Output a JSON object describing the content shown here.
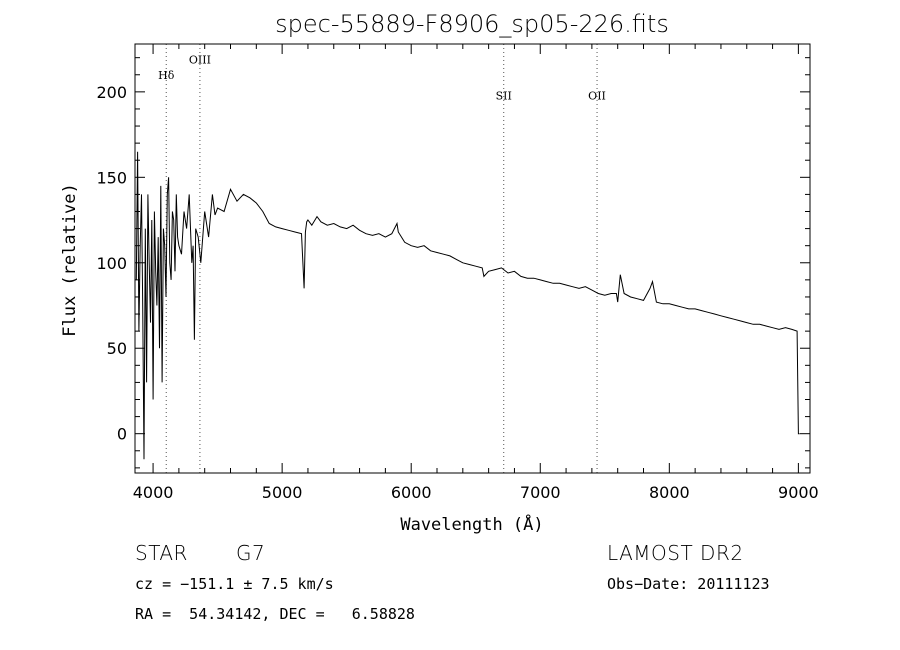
{
  "chart_data": {
    "type": "line",
    "title": "spec-55889-F8906_sp05-226.fits",
    "xlabel": "Wavelength (Å)",
    "ylabel": "Flux (relative)",
    "xlim": [
      3860,
      9090
    ],
    "ylim": [
      -23,
      228
    ],
    "x_ticks": [
      "4000",
      "5000",
      "6000",
      "7000",
      "8000",
      "9000"
    ],
    "x_tick_values": [
      4000,
      5000,
      6000,
      7000,
      8000,
      9000
    ],
    "y_ticks": [
      "0",
      "50",
      "100",
      "150",
      "200"
    ],
    "y_tick_values": [
      0,
      50,
      100,
      150,
      200
    ],
    "grid": false,
    "line_markers": [
      {
        "label": "Hδ",
        "wavelength": 4102,
        "label_flux": 210
      },
      {
        "label": "OIII",
        "wavelength": 4363,
        "label_flux": 219
      },
      {
        "label": "SII",
        "wavelength": 6717,
        "label_flux": 198
      },
      {
        "label": "OII",
        "wavelength": 7440,
        "label_flux": 198
      }
    ],
    "series": [
      {
        "x": [
          3870,
          3880,
          3890,
          3900,
          3910,
          3920,
          3930,
          3940,
          3950,
          3960,
          3970,
          3980,
          3990,
          4000,
          4010,
          4020,
          4030,
          4040,
          4050,
          4060,
          4070,
          4080,
          4090,
          4100,
          4110,
          4120,
          4130,
          4140,
          4150,
          4160,
          4170,
          4180,
          4190,
          4200,
          4220,
          4240,
          4260,
          4280,
          4300,
          4310,
          4320,
          4330,
          4350,
          4370,
          4400,
          4430,
          4460,
          4480,
          4500,
          4550,
          4600,
          4650,
          4700,
          4750,
          4800,
          4850,
          4900,
          4950,
          5000,
          5050,
          5100,
          5150,
          5170,
          5180,
          5190,
          5200,
          5230,
          5270,
          5300,
          5350,
          5400,
          5450,
          5500,
          5550,
          5600,
          5650,
          5700,
          5750,
          5800,
          5850,
          5890,
          5900,
          5950,
          6000,
          6050,
          6100,
          6150,
          6200,
          6250,
          6300,
          6350,
          6400,
          6450,
          6500,
          6550,
          6563,
          6600,
          6650,
          6700,
          6750,
          6800,
          6850,
          6900,
          6950,
          7000,
          7050,
          7100,
          7150,
          7200,
          7250,
          7300,
          7350,
          7400,
          7450,
          7500,
          7550,
          7590,
          7600,
          7620,
          7650,
          7700,
          7750,
          7800,
          7850,
          7870,
          7900,
          7950,
          8000,
          8050,
          8100,
          8150,
          8200,
          8250,
          8300,
          8350,
          8400,
          8450,
          8500,
          8550,
          8600,
          8650,
          8700,
          8750,
          8800,
          8850,
          8900,
          8950,
          8990,
          9000,
          9010
        ],
        "y": [
          90,
          165,
          60,
          110,
          140,
          75,
          -15,
          120,
          30,
          140,
          100,
          65,
          125,
          20,
          130,
          95,
          75,
          115,
          50,
          145,
          30,
          120,
          110,
          80,
          140,
          150,
          100,
          90,
          130,
          125,
          95,
          140,
          115,
          110,
          105,
          130,
          120,
          140,
          100,
          110,
          55,
          120,
          115,
          100,
          130,
          115,
          140,
          128,
          132,
          130,
          143,
          136,
          140,
          138,
          135,
          130,
          123,
          121,
          120,
          119,
          118,
          117,
          85,
          118,
          124,
          125,
          122,
          127,
          124,
          122,
          123,
          121,
          120,
          122,
          119,
          117,
          116,
          117,
          115,
          117,
          123,
          118,
          112,
          110,
          109,
          110,
          107,
          106,
          105,
          104,
          102,
          100,
          99,
          98,
          97,
          92,
          95,
          96,
          97,
          94,
          95,
          92,
          91,
          91,
          90,
          89,
          88,
          88,
          87,
          86,
          85,
          86,
          84,
          82,
          81,
          82,
          82,
          77,
          93,
          82,
          80,
          79,
          78,
          85,
          89,
          77,
          76,
          76,
          75,
          74,
          73,
          73,
          72,
          71,
          70,
          69,
          68,
          67,
          66,
          65,
          64,
          64,
          63,
          62,
          61,
          62,
          61,
          60,
          0,
          0
        ]
      }
    ]
  },
  "info": {
    "object_type": "STAR",
    "subclass": "G7",
    "survey": "LAMOST DR2",
    "redshift": "cz = −151.1 ± 7.5 km/s",
    "obs_date": "Obs−Date: 20111123",
    "coords": "RA =  54.34142, DEC =   6.58828"
  }
}
